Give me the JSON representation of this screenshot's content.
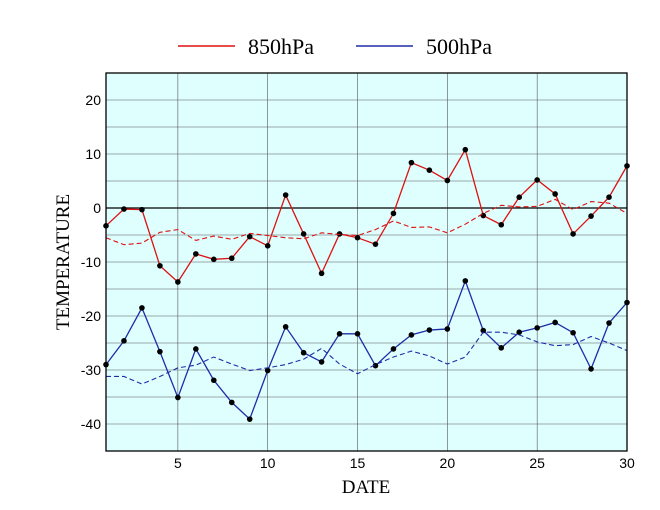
{
  "chart_data": {
    "type": "line",
    "title": "",
    "xlabel": "DATE",
    "ylabel": "TEMPERATURE",
    "xlim": [
      1,
      30
    ],
    "ylim": [
      -45,
      25
    ],
    "xticks": [
      5,
      10,
      15,
      20,
      25,
      30
    ],
    "yticks": [
      -40,
      -30,
      -20,
      -10,
      0,
      10,
      20
    ],
    "grid": true,
    "legend_position": "top-center",
    "background_color": "#dfffff",
    "x": [
      1,
      2,
      3,
      4,
      5,
      6,
      7,
      8,
      9,
      10,
      11,
      12,
      13,
      14,
      15,
      16,
      17,
      18,
      19,
      20,
      21,
      22,
      23,
      24,
      25,
      26,
      27,
      28,
      29,
      30
    ],
    "series": [
      {
        "name": "850hPa",
        "color": "#dd1111",
        "style": "solid",
        "markers": true,
        "values": [
          -3.3,
          -0.2,
          -0.3,
          -10.7,
          -13.7,
          -8.5,
          -9.5,
          -9.3,
          -5.3,
          -7.0,
          2.4,
          -4.8,
          -12.1,
          -4.8,
          -5.5,
          -6.7,
          -1.0,
          8.4,
          7.0,
          5.1,
          10.8,
          -1.4,
          -3.1,
          2.0,
          5.2,
          2.6,
          -4.8,
          -1.5,
          2.0,
          7.8
        ]
      },
      {
        "name": "",
        "color": "#dd1111",
        "style": "dashed",
        "markers": false,
        "values": [
          -5.5,
          -6.8,
          -6.5,
          -4.5,
          -4.0,
          -6.0,
          -5.2,
          -5.8,
          -4.7,
          -5.1,
          -5.5,
          -5.7,
          -4.6,
          -4.9,
          -5.1,
          -4.0,
          -2.4,
          -3.6,
          -3.5,
          -4.6,
          -3.0,
          -1.0,
          0.5,
          0.2,
          0.3,
          1.6,
          -0.3,
          1.2,
          0.9,
          -1.0
        ]
      },
      {
        "name": "500hPa",
        "color": "#1f2ca8",
        "style": "solid",
        "markers": true,
        "values": [
          -29.0,
          -24.6,
          -18.5,
          -26.6,
          -35.1,
          -26.1,
          -31.9,
          -36.0,
          -39.1,
          -30.1,
          -22.0,
          -26.8,
          -28.5,
          -23.3,
          -23.3,
          -29.2,
          -26.1,
          -23.5,
          -22.6,
          -22.4,
          -13.5,
          -22.7,
          -25.9,
          -23.0,
          -22.2,
          -21.2,
          -23.1,
          -29.8,
          -21.3,
          -17.5
        ]
      },
      {
        "name": "",
        "color": "#1f2ca8",
        "style": "dashed",
        "markers": false,
        "values": [
          -31.2,
          -31.2,
          -32.6,
          -31.2,
          -29.6,
          -29.1,
          -27.6,
          -28.9,
          -30.1,
          -29.6,
          -29.0,
          -28.0,
          -26.0,
          -28.9,
          -30.7,
          -29.0,
          -27.6,
          -26.5,
          -27.4,
          -28.9,
          -27.6,
          -23.0,
          -23.0,
          -23.5,
          -24.8,
          -25.5,
          -25.3,
          -23.8,
          -25.0,
          -26.4
        ]
      }
    ]
  }
}
